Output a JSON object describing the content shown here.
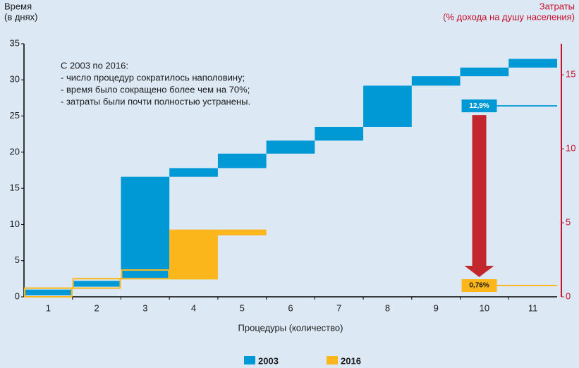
{
  "chart_data": {
    "type": "floating-bar",
    "y_label": [
      "Время",
      "(в днях)"
    ],
    "y2_label": [
      "Затраты",
      "(% дохода на душу населения)"
    ],
    "x_label": "Процедуры (количество)",
    "annotation": [
      "С 2003 по 2016:",
      "- число процедур сократилось наполовину;",
      "- время было сокращено более чем на 70%;",
      "- затраты были почти полностью устранены."
    ],
    "categories": [
      "1",
      "2",
      "3",
      "4",
      "5",
      "6",
      "7",
      "8",
      "9",
      "10",
      "11"
    ],
    "series": [
      {
        "name": "2003",
        "color": "#0099d6",
        "values": [
          [
            0.2,
            1.0
          ],
          [
            1.4,
            2.2
          ],
          [
            2.6,
            16.6
          ],
          [
            16.6,
            17.8
          ],
          [
            17.8,
            19.8
          ],
          [
            19.8,
            21.6
          ],
          [
            21.6,
            23.5
          ],
          [
            23.5,
            29.2
          ],
          [
            29.2,
            30.5
          ],
          [
            30.5,
            31.7
          ],
          [
            31.7,
            32.9
          ]
        ]
      },
      {
        "name": "2016",
        "color": "#fbb61b",
        "values": [
          [
            0,
            1.2
          ],
          [
            1.2,
            2.5
          ],
          [
            2.5,
            3.7
          ],
          [
            2.4,
            9.3
          ],
          [
            8.5,
            9.3
          ],
          null,
          null,
          null,
          null,
          null,
          null
        ]
      }
    ],
    "cost_lines": [
      {
        "value": 12.9,
        "label": "12,9%",
        "color": "#0099d6",
        "axis": "y2"
      },
      {
        "value": 0.76,
        "label": "0,76%",
        "color": "#fbb61b",
        "axis": "y2"
      }
    ],
    "arrow_color": "#c1272d",
    "ylim": [
      0,
      35
    ],
    "yticks": [
      0,
      5,
      10,
      15,
      20,
      25,
      30,
      35
    ],
    "y2lim": [
      0,
      17.1
    ],
    "y2ticks": [
      0,
      5,
      10,
      15
    ]
  }
}
